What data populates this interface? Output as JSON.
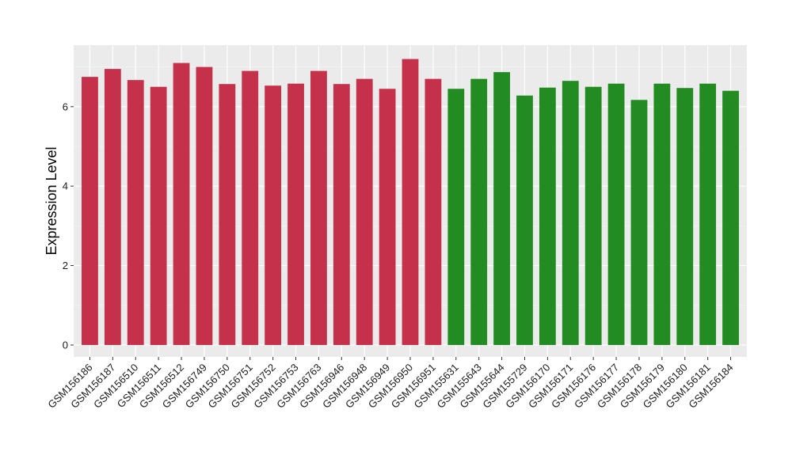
{
  "chart_data": {
    "type": "bar",
    "title": "",
    "xlabel": "",
    "ylabel": "Expression Level",
    "ylim": [
      -0.3,
      7.55
    ],
    "yticks": [
      0,
      2,
      4,
      6
    ],
    "grid": true,
    "legend": "none",
    "panel_background": "#EBEBEB",
    "categories": [
      "GSM156186",
      "GSM156187",
      "GSM156510",
      "GSM156511",
      "GSM156512",
      "GSM156749",
      "GSM156750",
      "GSM156751",
      "GSM156752",
      "GSM156753",
      "GSM156763",
      "GSM156946",
      "GSM156948",
      "GSM156949",
      "GSM156950",
      "GSM156951",
      "GSM155631",
      "GSM155643",
      "GSM155644",
      "GSM155729",
      "GSM156170",
      "GSM156171",
      "GSM156176",
      "GSM156177",
      "GSM156178",
      "GSM156179",
      "GSM156180",
      "GSM156181",
      "GSM156184"
    ],
    "values": [
      6.75,
      6.95,
      6.67,
      6.5,
      7.1,
      7.0,
      6.57,
      6.9,
      6.53,
      6.58,
      6.9,
      6.57,
      6.7,
      6.45,
      7.2,
      6.7,
      6.45,
      6.7,
      6.87,
      6.28,
      6.48,
      6.65,
      6.5,
      6.58,
      6.17,
      6.58,
      6.47,
      6.58,
      6.4
    ],
    "bar_colors": [
      "#C5314A",
      "#C5314A",
      "#C5314A",
      "#C5314A",
      "#C5314A",
      "#C5314A",
      "#C5314A",
      "#C5314A",
      "#C5314A",
      "#C5314A",
      "#C5314A",
      "#C5314A",
      "#C5314A",
      "#C5314A",
      "#C5314A",
      "#C5314A",
      "#228B22",
      "#228B22",
      "#228B22",
      "#228B22",
      "#228B22",
      "#228B22",
      "#228B22",
      "#228B22",
      "#228B22",
      "#228B22",
      "#228B22",
      "#228B22",
      "#228B22"
    ]
  }
}
